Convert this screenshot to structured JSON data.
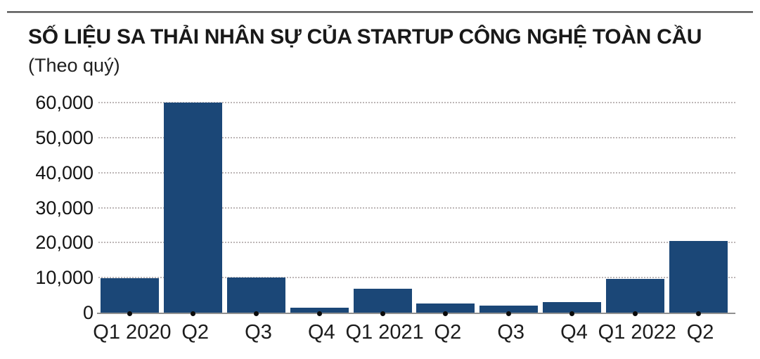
{
  "header": {
    "title": "SỐ LIỆU SA THẢI NHÂN SỰ CỦA STARTUP CÔNG NGHỆ TOÀN CẦU",
    "subtitle": "(Theo quý)"
  },
  "chart_data": {
    "type": "bar",
    "title": "SỐ LIỆU SA THẢI NHÂN SỰ CỦA STARTUP CÔNG NGHỆ TOÀN CẦU",
    "subtitle": "(Theo quý)",
    "categories": [
      "Q1 2020",
      "Q2",
      "Q3",
      "Q4",
      "Q1 2021",
      "Q2",
      "Q3",
      "Q4",
      "Q1 2022",
      "Q2"
    ],
    "values": [
      9800,
      60000,
      10000,
      1400,
      6800,
      2700,
      2000,
      3100,
      9700,
      20500
    ],
    "y_tick_labels": [
      "60,000",
      "50,000",
      "40,000",
      "30,000",
      "20,000",
      "10,000",
      "0"
    ],
    "y_tick_values": [
      60000,
      50000,
      40000,
      30000,
      20000,
      10000,
      0
    ],
    "ylim": [
      0,
      60000
    ],
    "xlabel": "",
    "ylabel": "",
    "grid": "horizontal-dotted",
    "legend_position": "none",
    "bar_color": "#1b4777"
  },
  "colors": {
    "bar": "#1b4777",
    "gridline": "#bdb6b6",
    "baseline": "#909090",
    "top_rule": "#4d4d4d",
    "tick_dot": "#0a0a0a",
    "text": "#191919",
    "background": "#ffffff"
  }
}
